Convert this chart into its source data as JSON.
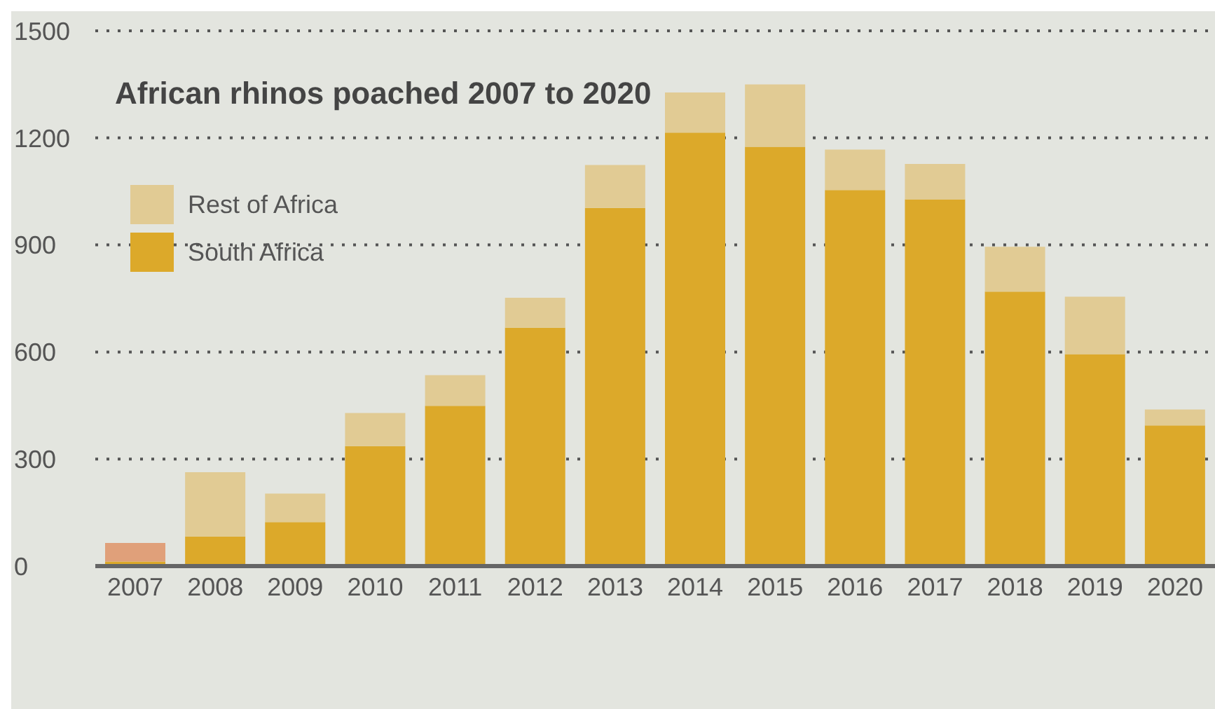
{
  "chart_data": {
    "type": "bar",
    "title": "African rhinos poached 2007 to 2020",
    "stacked": true,
    "categories": [
      "2007",
      "2008",
      "2009",
      "2010",
      "2011",
      "2012",
      "2013",
      "2014",
      "2015",
      "2016",
      "2017",
      "2018",
      "2019",
      "2020"
    ],
    "series": [
      {
        "name": "South Africa",
        "color": "#dca92a",
        "values": [
          13,
          83,
          123,
          336,
          449,
          668,
          1004,
          1215,
          1175,
          1054,
          1028,
          769,
          594,
          394
        ]
      },
      {
        "name": "Rest of Africa",
        "color": "#e1cb94",
        "colors": [
          "#e0a07a",
          "#e1cb94",
          "#e1cb94",
          "#e1cb94",
          "#e1cb94",
          "#e1cb94",
          "#e1cb94",
          "#e1cb94",
          "#e1cb94",
          "#e1cb94",
          "#e1cb94",
          "#e1cb94",
          "#e1cb94",
          "#e1cb94"
        ],
        "values": [
          52,
          180,
          80,
          93,
          86,
          84,
          120,
          112,
          175,
          113,
          99,
          126,
          161,
          45
        ]
      }
    ],
    "ylim": [
      0,
      1500
    ],
    "yticks": [
      0,
      300,
      600,
      900,
      1200,
      1500
    ],
    "grid": "y",
    "legend": "top left"
  }
}
